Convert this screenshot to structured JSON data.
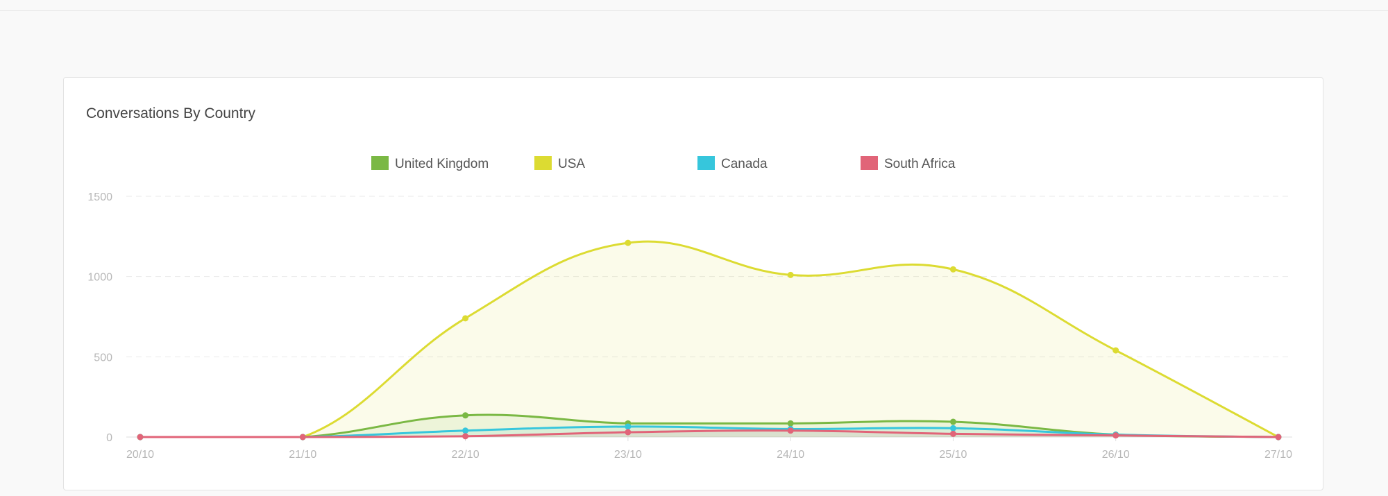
{
  "card": {
    "title": "Conversations By Country"
  },
  "chart_data": {
    "type": "area",
    "title": "Conversations By Country",
    "xlabel": "",
    "ylabel": "",
    "categories": [
      "20/10",
      "21/10",
      "22/10",
      "23/10",
      "24/10",
      "25/10",
      "26/10",
      "27/10"
    ],
    "y_ticks": [
      0,
      500,
      1000,
      1500
    ],
    "ylim": [
      0,
      1500
    ],
    "grid": true,
    "legend_position": "top",
    "series": [
      {
        "name": "United Kingdom",
        "color": "#7ab844",
        "values": [
          0,
          0,
          135,
          85,
          85,
          95,
          15,
          0
        ]
      },
      {
        "name": "USA",
        "color": "#dcdb32",
        "values": [
          0,
          0,
          740,
          1210,
          1010,
          1045,
          540,
          0
        ]
      },
      {
        "name": "Canada",
        "color": "#36c6dc",
        "values": [
          0,
          0,
          40,
          65,
          50,
          55,
          15,
          0
        ]
      },
      {
        "name": "South Africa",
        "color": "#e16478",
        "values": [
          0,
          0,
          5,
          30,
          40,
          20,
          10,
          0
        ]
      }
    ]
  }
}
